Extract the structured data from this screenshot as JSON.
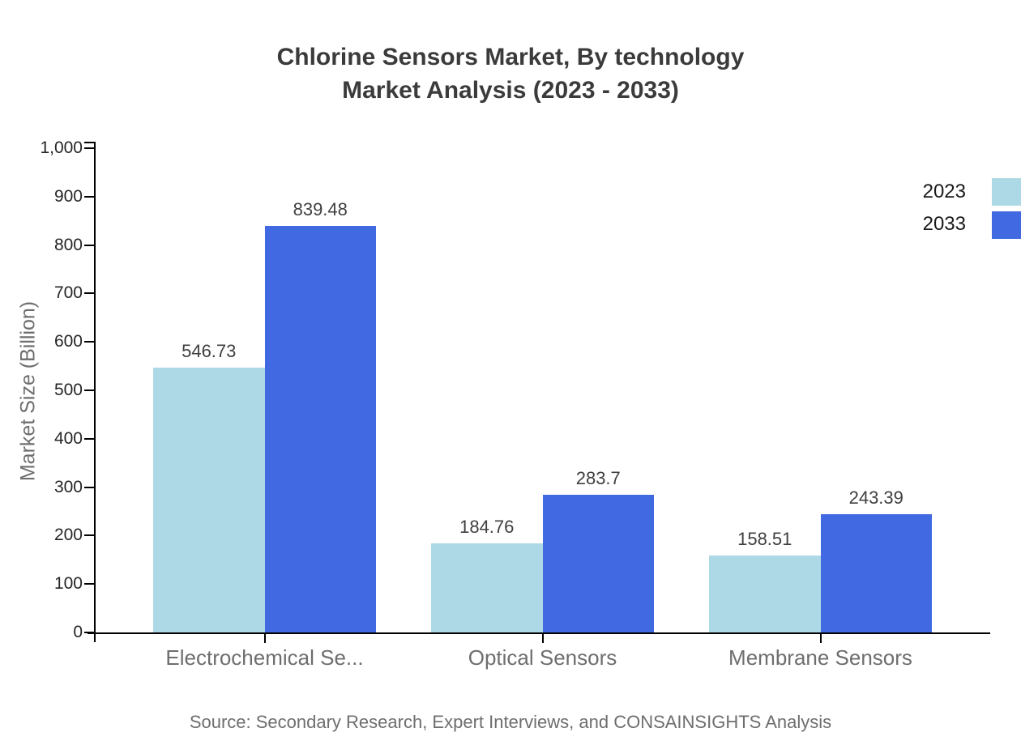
{
  "header": {
    "title": "Chlorine Sensors Market, By technology\nMarket Analysis (2023 - 2033)"
  },
  "legend": {
    "position": "top-right",
    "items": [
      {
        "label": "2023",
        "color": "#ADD8E6"
      },
      {
        "label": "2033",
        "color": "#4169E1"
      }
    ]
  },
  "footer": {
    "source": "Source: Secondary Research, Expert Interviews, and CONSAINSIGHTS Analysis"
  },
  "chart_data": {
    "type": "bar",
    "title": "Chlorine Sensors Market, By technology Market Analysis (2023 - 2033)",
    "categories": [
      "Electrochemical Se...",
      "Optical Sensors",
      "Membrane Sensors"
    ],
    "series": [
      {
        "name": "2023",
        "color": "#ADD8E6",
        "values": [
          546.73,
          184.76,
          158.51
        ],
        "value_labels": [
          "546.73",
          "184.76",
          "158.51"
        ]
      },
      {
        "name": "2033",
        "color": "#4169E1",
        "values": [
          839.48,
          283.7,
          243.39
        ],
        "value_labels": [
          "839.48",
          "283.7",
          "243.39"
        ]
      }
    ],
    "xlabel": "",
    "ylabel": "Market Size (Billion)",
    "ylim": [
      0,
      1000
    ],
    "ytick_step": 100,
    "ytick_labels": [
      "0",
      "100",
      "200",
      "300",
      "400",
      "500",
      "600",
      "700",
      "800",
      "900",
      "1,000"
    ],
    "grid": false,
    "legend_position": "top-right",
    "bar_value_labels_shown": true
  },
  "colors": {
    "title_text": "#3b3b3b",
    "axis": "#000000",
    "tick_label": "#262626",
    "category_label": "#6e6e6e",
    "value_label": "#3f3f3f",
    "source_text": "#6e6e6e"
  }
}
